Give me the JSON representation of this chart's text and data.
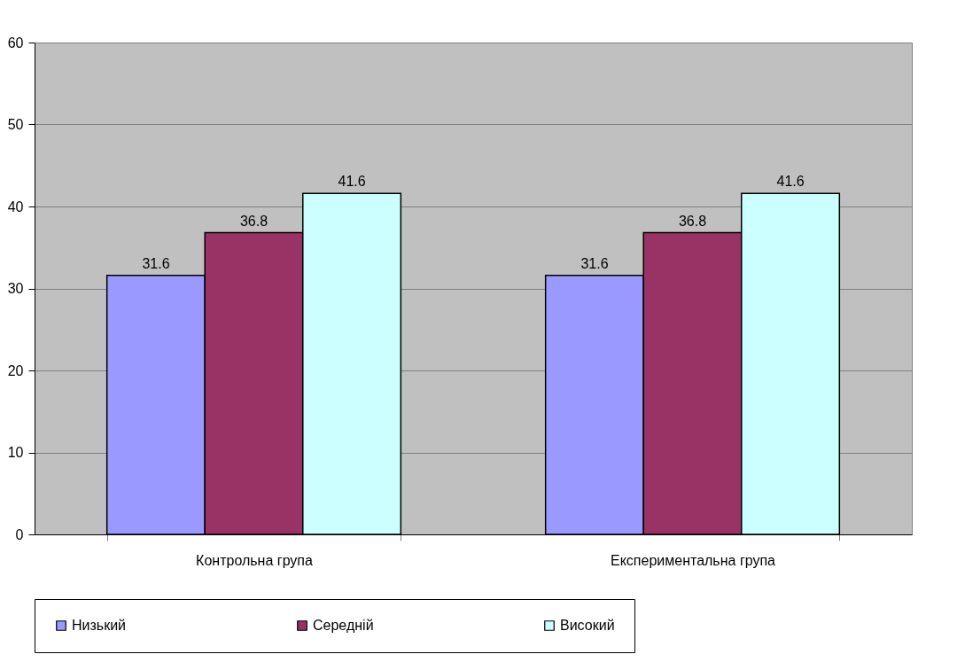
{
  "chart_data": {
    "type": "bar",
    "categories": [
      "Контрольна група",
      "Експериментальна група"
    ],
    "series": [
      {
        "name": "Низький",
        "color": "#9999ff",
        "values": [
          31.6,
          31.6
        ]
      },
      {
        "name": "Середній",
        "color": "#993366",
        "values": [
          36.8,
          36.8
        ]
      },
      {
        "name": "Високий",
        "color": "#ccffff",
        "values": [
          41.6,
          41.6
        ]
      }
    ],
    "ylim": [
      0,
      60
    ],
    "yticks": [
      0,
      10,
      20,
      30,
      40,
      50,
      60
    ],
    "grid": "y",
    "legend": "bottom",
    "data_labels": true
  }
}
